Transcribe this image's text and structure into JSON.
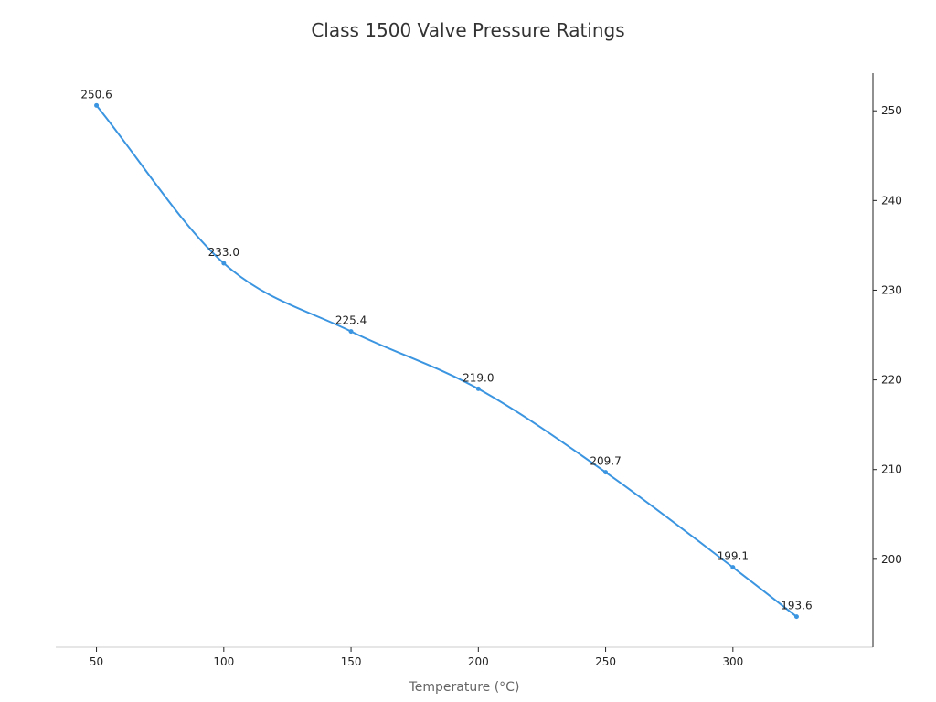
{
  "chart_data": {
    "type": "line",
    "title": "Class 1500 Valve Pressure Ratings",
    "xlabel": "Temperature (°C)",
    "ylabel": "",
    "x": [
      50,
      100,
      150,
      200,
      250,
      300,
      325
    ],
    "series": [
      {
        "values": [
          250.6,
          233.0,
          225.4,
          219.0,
          209.7,
          199.1,
          193.6
        ],
        "labels": [
          "250.6",
          "233.0",
          "225.4",
          "219.0",
          "209.7",
          "199.1",
          "193.6"
        ],
        "color": "#3b95e0"
      }
    ],
    "x_ticks": [
      50,
      100,
      150,
      200,
      250,
      300
    ],
    "x_tick_labels": [
      "50",
      "100",
      "150",
      "200",
      "250",
      "300"
    ],
    "y_ticks": [
      200,
      210,
      220,
      230,
      240,
      250
    ],
    "y_tick_labels": [
      "200",
      "210",
      "220",
      "230",
      "240",
      "250"
    ],
    "xlim": [
      34,
      355
    ],
    "ylim": [
      190.2,
      254.2
    ],
    "y_axis_side": "right",
    "grid": false,
    "legend": "none",
    "smooth": true
  }
}
